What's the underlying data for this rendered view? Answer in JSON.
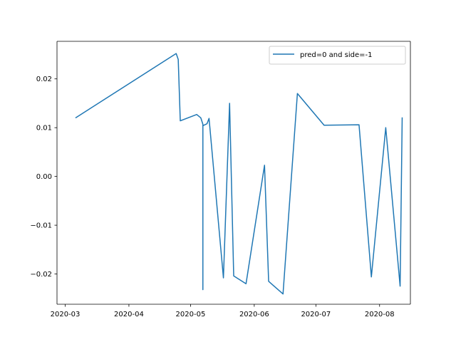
{
  "chart_data": {
    "type": "line",
    "title": "",
    "xlabel": "",
    "ylabel": "",
    "x_axis_type": "date",
    "xlim": [
      "2020-02-26",
      "2020-08-16"
    ],
    "ylim": [
      -0.0262,
      0.0277
    ],
    "x_ticks": [
      "2020-03-01",
      "2020-04-01",
      "2020-05-01",
      "2020-06-01",
      "2020-07-01",
      "2020-08-01"
    ],
    "x_tick_labels": [
      "2020-03",
      "2020-04",
      "2020-05",
      "2020-06",
      "2020-07",
      "2020-08"
    ],
    "y_ticks": [
      -0.02,
      -0.01,
      0.0,
      0.01,
      0.02
    ],
    "y_tick_labels": [
      "−0.02",
      "−0.01",
      "0.00",
      "0.01",
      "0.02"
    ],
    "grid": false,
    "legend": {
      "position": "top-right"
    },
    "series": [
      {
        "name": "pred=0 and side=-1",
        "color": "#1f77b4",
        "points": [
          {
            "x": "2020-03-06",
            "y": 0.012
          },
          {
            "x": "2020-04-24",
            "y": 0.0252
          },
          {
            "x": "2020-04-25",
            "y": 0.024
          },
          {
            "x": "2020-04-26",
            "y": 0.0114
          },
          {
            "x": "2020-05-04",
            "y": 0.0127
          },
          {
            "x": "2020-05-06",
            "y": 0.012
          },
          {
            "x": "2020-05-07",
            "y": 0.0107
          },
          {
            "x": "2020-05-07",
            "y": -0.0232
          },
          {
            "x": "2020-05-07",
            "y": 0.0104
          },
          {
            "x": "2020-05-09",
            "y": 0.0108
          },
          {
            "x": "2020-05-10",
            "y": 0.0119
          },
          {
            "x": "2020-05-17",
            "y": -0.0208
          },
          {
            "x": "2020-05-20",
            "y": 0.015
          },
          {
            "x": "2020-05-22",
            "y": -0.0204
          },
          {
            "x": "2020-05-28",
            "y": -0.022
          },
          {
            "x": "2020-06-06",
            "y": 0.0023
          },
          {
            "x": "2020-06-08",
            "y": -0.0215
          },
          {
            "x": "2020-06-15",
            "y": -0.0241
          },
          {
            "x": "2020-06-22",
            "y": 0.017
          },
          {
            "x": "2020-07-05",
            "y": 0.0105
          },
          {
            "x": "2020-07-22",
            "y": 0.0106
          },
          {
            "x": "2020-07-28",
            "y": -0.0206
          },
          {
            "x": "2020-08-04",
            "y": 0.01
          },
          {
            "x": "2020-08-11",
            "y": -0.0225
          },
          {
            "x": "2020-08-12",
            "y": 0.0121
          }
        ]
      }
    ]
  }
}
